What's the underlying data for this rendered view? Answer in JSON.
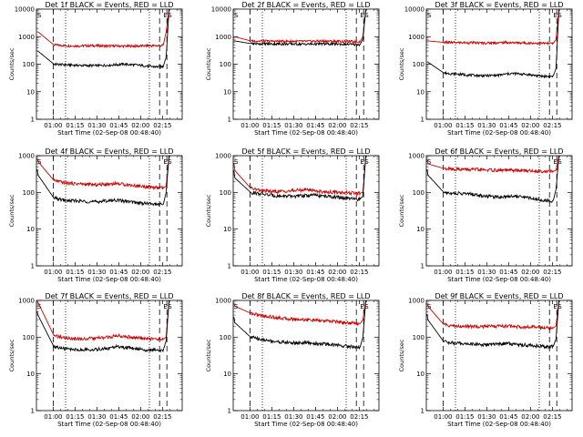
{
  "chart_data": [
    {
      "type": "line",
      "title": "Det 1f BLACK = Events, RED = LLD",
      "xlabel": "Start Time (02-Sep-08 00:48:40)",
      "ylabel": "Counts/sec",
      "yscale": "log",
      "ylim": [
        1,
        10000
      ],
      "x_ticks": [
        "01:00",
        "01:15",
        "01:30",
        "01:45",
        "02:00",
        "02:15"
      ],
      "y_ticks": [
        "1",
        "10",
        "100",
        "1000",
        "10000"
      ],
      "markers": [
        {
          "label": "S",
          "x": 0.0
        },
        {
          "label": "E",
          "x": 0.865
        },
        {
          "label": "S",
          "x": 0.895
        }
      ],
      "dashed_x": [
        0.115,
        0.845,
        0.895
      ],
      "dotted_x": [
        0.2,
        0.775
      ],
      "series": [
        {
          "color": "#cc0000",
          "values": [
            1500,
            1500,
            500,
            470,
            460,
            470,
            455,
            460,
            450,
            455,
            465,
            470,
            480,
            1500,
            10000
          ]
        },
        {
          "color": "#000000",
          "values": [
            300,
            300,
            100,
            95,
            90,
            88,
            92,
            96,
            100,
            92,
            85,
            80,
            82,
            180,
            10000
          ]
        }
      ]
    },
    {
      "type": "line",
      "title": "Det 2f BLACK = Events, RED = LLD",
      "xlabel": "Start Time (02-Sep-08 00:48:40)",
      "ylabel": "Counts/sec",
      "yscale": "log",
      "ylim": [
        1,
        10000
      ],
      "x_ticks": [
        "01:00",
        "01:15",
        "01:30",
        "01:45",
        "02:00",
        "02:15"
      ],
      "y_ticks": [
        "1",
        "10",
        "100",
        "1000",
        "10000"
      ],
      "markers": [
        {
          "label": "S",
          "x": 0.0
        },
        {
          "label": "E",
          "x": 0.865
        },
        {
          "label": "S",
          "x": 0.895
        }
      ],
      "dashed_x": [
        0.115,
        0.845,
        0.895
      ],
      "dotted_x": [
        0.2,
        0.775
      ],
      "series": [
        {
          "color": "#cc0000",
          "values": [
            1000,
            1000,
            700,
            690,
            680,
            680,
            670,
            680,
            690,
            680,
            670,
            660,
            650,
            1000,
            10000
          ]
        },
        {
          "color": "#000000",
          "values": [
            700,
            700,
            560,
            550,
            545,
            540,
            535,
            540,
            545,
            540,
            530,
            520,
            510,
            800,
            10000
          ]
        }
      ]
    },
    {
      "type": "line",
      "title": "Det 3f BLACK = Events, RED = LLD",
      "xlabel": "Start Time (02-Sep-08 00:48:40)",
      "ylabel": "Counts/sec",
      "yscale": "log",
      "ylim": [
        1,
        10000
      ],
      "x_ticks": [
        "01:00",
        "01:15",
        "01:30",
        "01:45",
        "02:00",
        "02:15"
      ],
      "y_ticks": [
        "1",
        "10",
        "100",
        "1000",
        "10000"
      ],
      "markers": [
        {
          "label": "S",
          "x": 0.0
        },
        {
          "label": "E",
          "x": 0.865
        },
        {
          "label": "S",
          "x": 0.895
        }
      ],
      "dashed_x": [
        0.115,
        0.845,
        0.895
      ],
      "dotted_x": [
        0.2,
        0.775
      ],
      "series": [
        {
          "color": "#cc0000",
          "values": [
            700,
            700,
            620,
            610,
            600,
            590,
            600,
            610,
            600,
            590,
            580,
            570,
            560,
            800,
            10000
          ]
        },
        {
          "color": "#000000",
          "values": [
            120,
            120,
            48,
            44,
            40,
            38,
            40,
            44,
            46,
            42,
            38,
            36,
            36,
            70,
            10000
          ]
        }
      ]
    },
    {
      "type": "line",
      "title": "Det 4f BLACK = Events, RED = LLD",
      "xlabel": "Start Time (02-Sep-08 00:48:40)",
      "ylabel": "Counts/sec",
      "yscale": "log",
      "ylim": [
        1,
        1000
      ],
      "x_ticks": [
        "01:00",
        "01:15",
        "01:30",
        "01:45",
        "02:00",
        "02:15"
      ],
      "y_ticks": [
        "1",
        "10",
        "100",
        "1000"
      ],
      "markers": [
        {
          "label": "S",
          "x": 0.0
        },
        {
          "label": "E",
          "x": 0.865
        },
        {
          "label": "S",
          "x": 0.895
        }
      ],
      "dashed_x": [
        0.115,
        0.845,
        0.895
      ],
      "dotted_x": [
        0.2,
        0.775
      ],
      "series": [
        {
          "color": "#cc0000",
          "values": [
            1000,
            700,
            210,
            180,
            170,
            160,
            170,
            175,
            165,
            150,
            140,
            135,
            130,
            150,
            1000
          ]
        },
        {
          "color": "#000000",
          "values": [
            600,
            300,
            70,
            60,
            58,
            55,
            60,
            62,
            58,
            52,
            50,
            48,
            46,
            100,
            1000
          ]
        }
      ]
    },
    {
      "type": "line",
      "title": "Det 5f BLACK = Events, RED = LLD",
      "xlabel": "Start Time (02-Sep-08 00:48:40)",
      "ylabel": "Counts/sec",
      "yscale": "log",
      "ylim": [
        1,
        1000
      ],
      "x_ticks": [
        "01:00",
        "01:15",
        "01:30",
        "01:45",
        "02:00",
        "02:15"
      ],
      "y_ticks": [
        "1",
        "10",
        "100",
        "1000"
      ],
      "markers": [
        {
          "label": "S",
          "x": 0.0
        },
        {
          "label": "E",
          "x": 0.865
        },
        {
          "label": "S",
          "x": 0.895
        }
      ],
      "dashed_x": [
        0.115,
        0.845,
        0.895
      ],
      "dotted_x": [
        0.2,
        0.775
      ],
      "series": [
        {
          "color": "#cc0000",
          "values": [
            1000,
            400,
            130,
            110,
            105,
            110,
            120,
            115,
            105,
            100,
            100,
            95,
            95,
            100,
            1000
          ]
        },
        {
          "color": "#000000",
          "values": [
            600,
            250,
            100,
            90,
            80,
            78,
            82,
            85,
            80,
            75,
            70,
            66,
            65,
            80,
            1000
          ]
        }
      ]
    },
    {
      "type": "line",
      "title": "Det 6f BLACK = Events, RED = LLD",
      "xlabel": "Start Time (02-Sep-08 00:48:40)",
      "ylabel": "Counts/sec",
      "yscale": "log",
      "ylim": [
        1,
        1000
      ],
      "x_ticks": [
        "01:00",
        "01:15",
        "01:30",
        "01:45",
        "02:00",
        "02:15"
      ],
      "y_ticks": [
        "1",
        "10",
        "100",
        "1000"
      ],
      "markers": [
        {
          "label": "S",
          "x": 0.0
        },
        {
          "label": "E",
          "x": 0.865
        },
        {
          "label": "S",
          "x": 0.895
        }
      ],
      "dashed_x": [
        0.115,
        0.845,
        0.895
      ],
      "dotted_x": [
        0.2,
        0.775
      ],
      "series": [
        {
          "color": "#cc0000",
          "values": [
            1000,
            600,
            450,
            430,
            420,
            410,
            400,
            400,
            400,
            390,
            380,
            375,
            370,
            400,
            1000
          ]
        },
        {
          "color": "#000000",
          "values": [
            600,
            300,
            100,
            95,
            90,
            80,
            75,
            78,
            80,
            72,
            65,
            60,
            58,
            120,
            1000
          ]
        }
      ]
    },
    {
      "type": "line",
      "title": "Det 7f BLACK = Events, RED = LLD",
      "xlabel": "Start Time (02-Sep-08 00:48:40)",
      "ylabel": "Counts/sec",
      "yscale": "log",
      "ylim": [
        1,
        1000
      ],
      "x_ticks": [
        "01:00",
        "01:15",
        "01:30",
        "01:45",
        "02:00",
        "02:15"
      ],
      "y_ticks": [
        "1",
        "10",
        "100",
        "1000"
      ],
      "markers": [
        {
          "label": "S",
          "x": 0.0
        },
        {
          "label": "E",
          "x": 0.865
        },
        {
          "label": "S",
          "x": 0.895
        }
      ],
      "dashed_x": [
        0.115,
        0.845,
        0.895
      ],
      "dotted_x": [
        0.2,
        0.775
      ],
      "series": [
        {
          "color": "#cc0000",
          "values": [
            1000,
            900,
            110,
            95,
            90,
            92,
            100,
            110,
            105,
            95,
            90,
            88,
            88,
            100,
            1000
          ]
        },
        {
          "color": "#000000",
          "values": [
            600,
            400,
            55,
            48,
            45,
            46,
            50,
            55,
            52,
            48,
            45,
            44,
            44,
            80,
            1000
          ]
        }
      ]
    },
    {
      "type": "line",
      "title": "Det 8f BLACK = Events, RED = LLD",
      "xlabel": "Start Time (02-Sep-08 00:48:40)",
      "ylabel": "Counts/sec",
      "yscale": "log",
      "ylim": [
        1,
        1000
      ],
      "x_ticks": [
        "01:00",
        "01:15",
        "01:30",
        "01:45",
        "02:00",
        "02:15"
      ],
      "y_ticks": [
        "1",
        "10",
        "100",
        "1000"
      ],
      "markers": [
        {
          "label": "S",
          "x": 0.0
        },
        {
          "label": "E",
          "x": 0.865
        },
        {
          "label": "S",
          "x": 0.895
        }
      ],
      "dashed_x": [
        0.115,
        0.845,
        0.895
      ],
      "dotted_x": [
        0.2,
        0.775
      ],
      "series": [
        {
          "color": "#cc0000",
          "values": [
            1000,
            700,
            450,
            380,
            340,
            310,
            300,
            290,
            280,
            270,
            250,
            240,
            230,
            300,
            1000
          ]
        },
        {
          "color": "#000000",
          "values": [
            500,
            250,
            100,
            85,
            75,
            70,
            70,
            68,
            66,
            62,
            58,
            55,
            52,
            100,
            1000
          ]
        }
      ]
    },
    {
      "type": "line",
      "title": "Det 9f BLACK = Events, RED = LLD",
      "xlabel": "Start Time (02-Sep-08 00:48:40)",
      "ylabel": "Counts/sec",
      "yscale": "log",
      "ylim": [
        1,
        1000
      ],
      "x_ticks": [
        "01:00",
        "01:15",
        "01:30",
        "01:45",
        "02:00",
        "02:15"
      ],
      "y_ticks": [
        "1",
        "10",
        "100",
        "1000"
      ],
      "markers": [
        {
          "label": "S",
          "x": 0.0
        },
        {
          "label": "E",
          "x": 0.865
        },
        {
          "label": "S",
          "x": 0.895
        }
      ],
      "dashed_x": [
        0.115,
        0.845,
        0.895
      ],
      "dotted_x": [
        0.2,
        0.775
      ],
      "series": [
        {
          "color": "#cc0000",
          "values": [
            1000,
            700,
            220,
            200,
            195,
            195,
            200,
            200,
            195,
            190,
            185,
            180,
            180,
            200,
            1000
          ]
        },
        {
          "color": "#000000",
          "values": [
            600,
            300,
            75,
            68,
            65,
            62,
            65,
            68,
            64,
            60,
            58,
            55,
            55,
            90,
            1000
          ]
        }
      ]
    }
  ]
}
